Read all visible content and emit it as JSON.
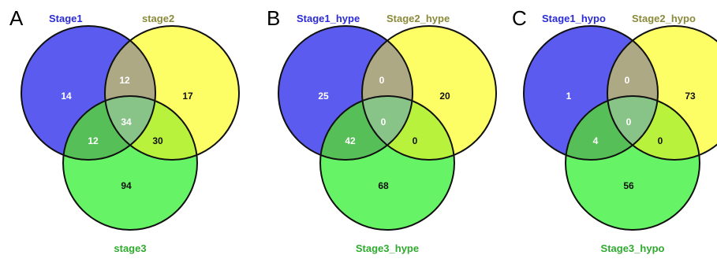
{
  "colors": {
    "set1_fill": "#5b5bf0",
    "set2_fill": "#fdfd66",
    "set3_fill": "#66f466",
    "overlap12_fill": "#ada985",
    "overlap13_fill": "#57bf57",
    "overlap23_fill": "#b9f23c",
    "overlap123_fill": "#88c388",
    "set1_label": "#2b2bd6",
    "set2_label": "#8a8a3a",
    "set3_label": "#2faa2f"
  },
  "panels": [
    {
      "letter": "A",
      "labels": {
        "set1": "Stage1",
        "set2": "stage2",
        "set3": "stage3"
      },
      "counts": {
        "only1": "14",
        "only2": "17",
        "only3": "94",
        "s12": "12",
        "s13": "12",
        "s23": "30",
        "all": "34"
      }
    },
    {
      "letter": "B",
      "labels": {
        "set1": "Stage1_hype",
        "set2": "Stage2_hype",
        "set3": "Stage3_hype"
      },
      "counts": {
        "only1": "25",
        "only2": "20",
        "only3": "68",
        "s12": "0",
        "s13": "42",
        "s23": "0",
        "all": "0"
      }
    },
    {
      "letter": "C",
      "labels": {
        "set1": "Stage1_hypo",
        "set2": "Stage2_hypo",
        "set3": "Stage3_hypo"
      },
      "counts": {
        "only1": "1",
        "only2": "73",
        "only3": "56",
        "s12": "0",
        "s13": "4",
        "s23": "0",
        "all": "0"
      }
    }
  ]
}
